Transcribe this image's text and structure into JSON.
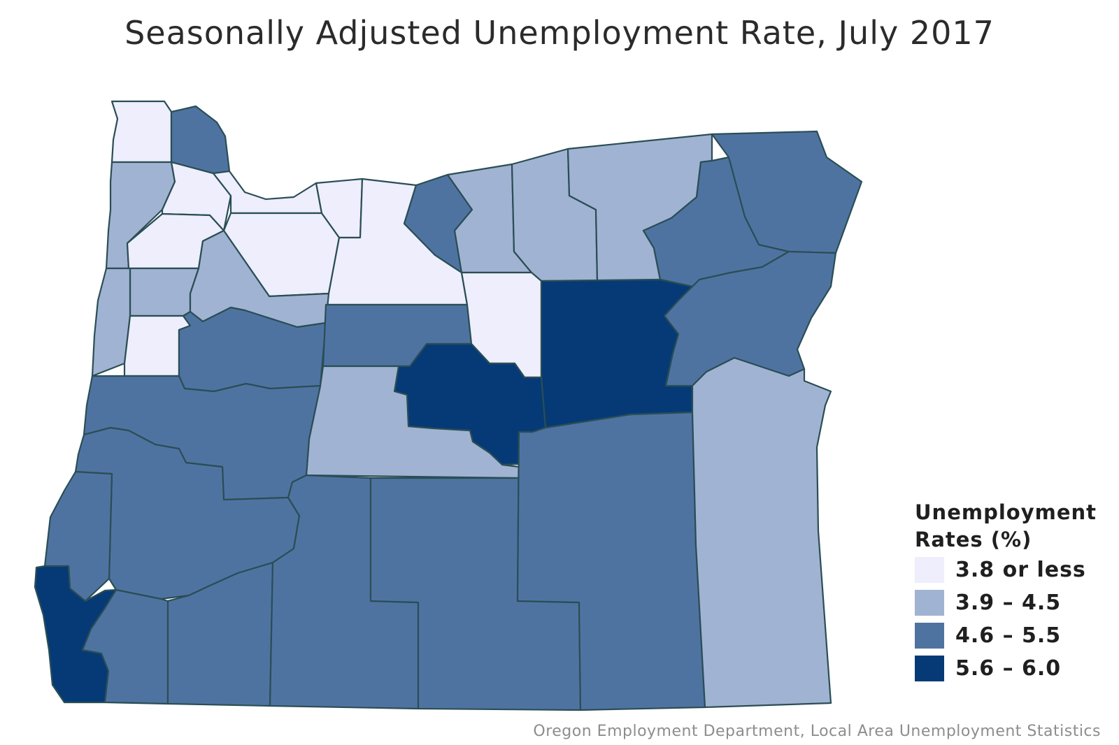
{
  "title": "Seasonally Adjusted Unemployment Rate, July 2017",
  "legend": {
    "title_line1": "Unemployment",
    "title_line2": "Rates (%)",
    "items": [
      {
        "label": "3.8 or less",
        "color": "#eeeefc"
      },
      {
        "label": "3.9 – 4.5",
        "color": "#a1b3d2"
      },
      {
        "label": "4.6 – 5.5",
        "color": "#4f73a1"
      },
      {
        "label": "5.6 – 6.0",
        "color": "#053a76"
      }
    ]
  },
  "source": "Oregon Employment Department, Local Area Unemployment Statistics",
  "counties": [
    {
      "name": "Clatsop",
      "class": 0
    },
    {
      "name": "Columbia",
      "class": 2
    },
    {
      "name": "Tillamook",
      "class": 1
    },
    {
      "name": "Washington",
      "class": 0
    },
    {
      "name": "Multnomah",
      "class": 0
    },
    {
      "name": "Yamhill",
      "class": 0
    },
    {
      "name": "Clackamas",
      "class": 0
    },
    {
      "name": "Hood River",
      "class": 0
    },
    {
      "name": "Wasco",
      "class": 0
    },
    {
      "name": "Sherman",
      "class": 2
    },
    {
      "name": "Gilliam",
      "class": 1
    },
    {
      "name": "Morrow",
      "class": 1
    },
    {
      "name": "Umatilla",
      "class": 1
    },
    {
      "name": "Union",
      "class": 2
    },
    {
      "name": "Wallowa",
      "class": 2
    },
    {
      "name": "Polk",
      "class": 1
    },
    {
      "name": "Marion",
      "class": 1
    },
    {
      "name": "Lincoln",
      "class": 1
    },
    {
      "name": "Benton",
      "class": 0
    },
    {
      "name": "Linn",
      "class": 2
    },
    {
      "name": "Jefferson",
      "class": 2
    },
    {
      "name": "Wheeler",
      "class": 0
    },
    {
      "name": "Grant",
      "class": 3
    },
    {
      "name": "Baker",
      "class": 2
    },
    {
      "name": "Crook",
      "class": 3
    },
    {
      "name": "Deschutes",
      "class": 1
    },
    {
      "name": "Lane",
      "class": 2
    },
    {
      "name": "Douglas",
      "class": 2
    },
    {
      "name": "Coos",
      "class": 2
    },
    {
      "name": "Curry",
      "class": 3
    },
    {
      "name": "Josephine",
      "class": 2
    },
    {
      "name": "Jackson",
      "class": 2
    },
    {
      "name": "Klamath",
      "class": 2
    },
    {
      "name": "Lake",
      "class": 2
    },
    {
      "name": "Harney",
      "class": 2
    },
    {
      "name": "Malheur",
      "class": 1
    }
  ]
}
